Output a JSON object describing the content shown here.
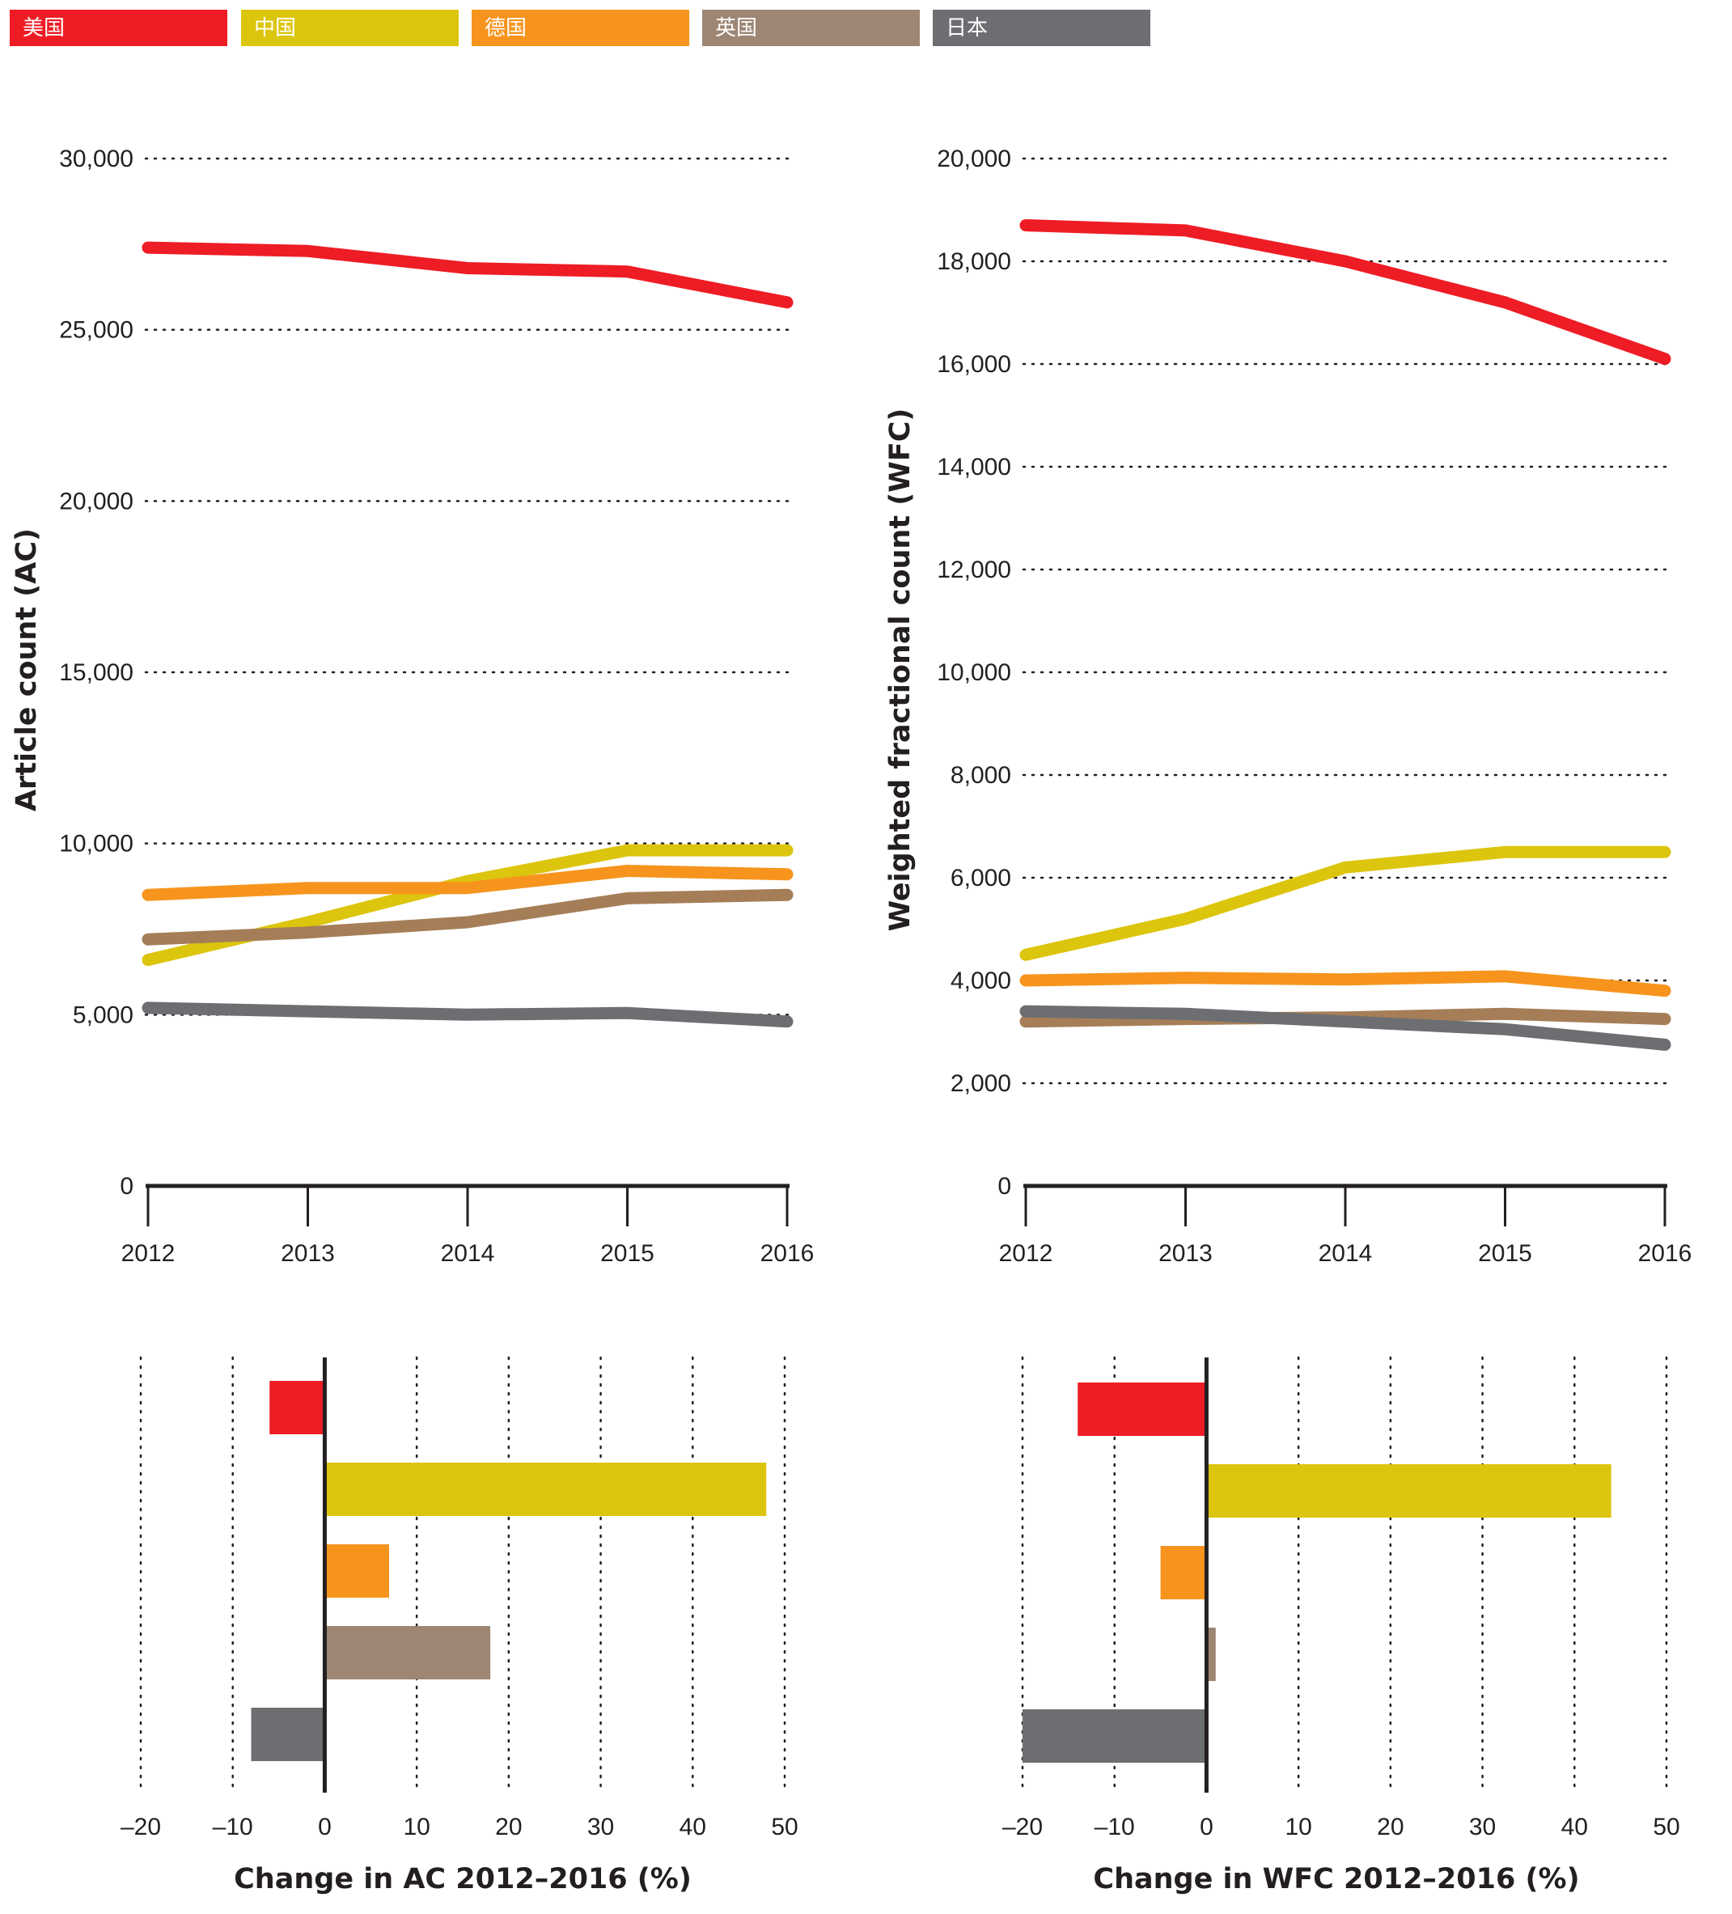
{
  "legend": [
    {
      "label": "美国",
      "color": "#ee1c25"
    },
    {
      "label": "中国",
      "color": "#dcc50d"
    },
    {
      "label": "德国",
      "color": "#f7941d"
    },
    {
      "label": "英国",
      "color": "#9d8674"
    },
    {
      "label": "日本",
      "color": "#6d6e71"
    }
  ],
  "chart_data": [
    {
      "type": "line",
      "ylabel": "Article count (AC)",
      "x": [
        2012,
        2013,
        2014,
        2015,
        2016
      ],
      "x_tick_labels": [
        "2012",
        "2013",
        "2014",
        "2015",
        "2016"
      ],
      "ylim": [
        0,
        30000
      ],
      "y_tick_labels": [
        "0",
        "5,000",
        "10,000",
        "15,000",
        "20,000",
        "25,000",
        "30,000"
      ],
      "grid": "dotted horizontal",
      "series": [
        {
          "name": "美国",
          "color": "#ee1c25",
          "values": [
            27400,
            27300,
            26800,
            26700,
            25800
          ]
        },
        {
          "name": "中国",
          "color": "#dcc50d",
          "values": [
            6600,
            7700,
            8900,
            9800,
            9800
          ]
        },
        {
          "name": "德国",
          "color": "#f7941d",
          "values": [
            8500,
            8700,
            8700,
            9200,
            9100
          ]
        },
        {
          "name": "英国",
          "color": "#a57e58",
          "values": [
            7200,
            7400,
            7700,
            8400,
            8500
          ]
        },
        {
          "name": "日本",
          "color": "#6d6e71",
          "values": [
            5200,
            5100,
            5000,
            5050,
            4800
          ]
        }
      ]
    },
    {
      "type": "line",
      "ylabel": "Weighted fractional count (WFC)",
      "x": [
        2012,
        2013,
        2014,
        2015,
        2016
      ],
      "x_tick_labels": [
        "2012",
        "2013",
        "2014",
        "2015",
        "2016"
      ],
      "ylim": [
        0,
        20000
      ],
      "y_tick_labels": [
        "0",
        "2,000",
        "4,000",
        "6,000",
        "8,000",
        "10,000",
        "12,000",
        "14,000",
        "16,000",
        "18,000",
        "20,000"
      ],
      "grid": "dotted horizontal",
      "series": [
        {
          "name": "美国",
          "color": "#ee1c25",
          "values": [
            18700,
            18600,
            18000,
            17200,
            16100
          ]
        },
        {
          "name": "中国",
          "color": "#dcc50d",
          "values": [
            4500,
            5200,
            6200,
            6500,
            6500
          ]
        },
        {
          "name": "德国",
          "color": "#f7941d",
          "values": [
            4000,
            4050,
            4020,
            4080,
            3800
          ]
        },
        {
          "name": "英国",
          "color": "#a57e58",
          "values": [
            3200,
            3250,
            3280,
            3350,
            3250
          ]
        },
        {
          "name": "日本",
          "color": "#6d6e71",
          "values": [
            3400,
            3350,
            3200,
            3050,
            2750
          ]
        }
      ]
    },
    {
      "type": "bar",
      "orientation": "horizontal",
      "xlabel": "Change in AC 2012–2016 (%)",
      "xlim": [
        -20,
        50
      ],
      "x_tick_labels": [
        "–20",
        "–10",
        "0",
        "10",
        "20",
        "30",
        "40",
        "50"
      ],
      "categories": [
        "美国",
        "中国",
        "德国",
        "英国",
        "日本"
      ],
      "colors": [
        "#ee1c25",
        "#dcc50d",
        "#f7941d",
        "#9d8674",
        "#6d6e71"
      ],
      "values": [
        -6,
        48,
        7,
        18,
        -8
      ]
    },
    {
      "type": "bar",
      "orientation": "horizontal",
      "xlabel": "Change in WFC 2012–2016 (%)",
      "xlim": [
        -20,
        50
      ],
      "x_tick_labels": [
        "–20",
        "–10",
        "0",
        "10",
        "20",
        "30",
        "40",
        "50"
      ],
      "categories": [
        "美国",
        "中国",
        "德国",
        "英国",
        "日本"
      ],
      "colors": [
        "#ee1c25",
        "#dcc50d",
        "#f7941d",
        "#9d8674",
        "#6d6e71"
      ],
      "values": [
        -14,
        44,
        -5,
        1,
        -20
      ]
    }
  ]
}
